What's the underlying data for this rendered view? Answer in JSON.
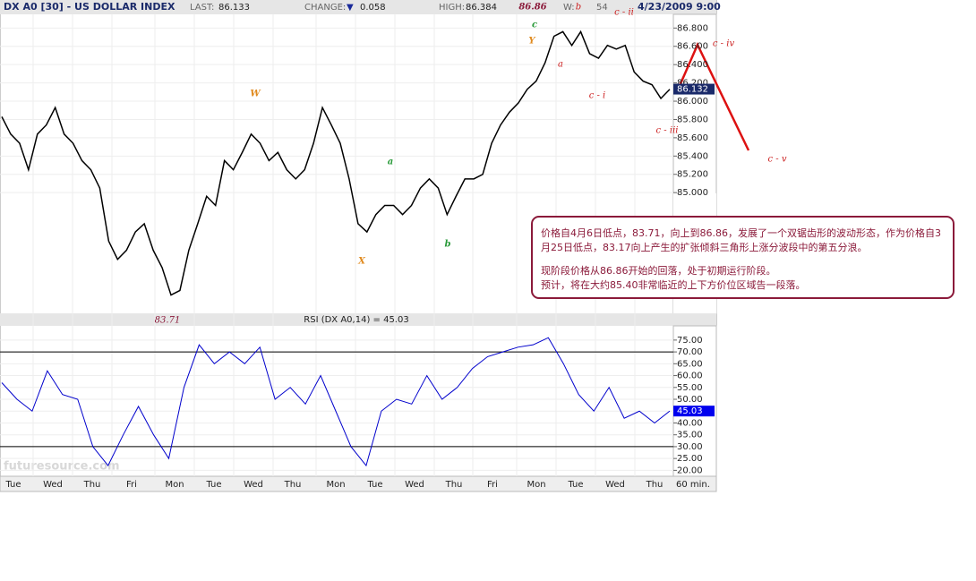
{
  "header": {
    "title": "DX A0 [30] - US DOLLAR INDEX",
    "last_label": "LAST:",
    "last": 86.133,
    "change_label": "CHANGE:",
    "change_arrow": "▼",
    "change": 0.058,
    "high_label": "HIGH:",
    "high": 86.384,
    "w_label": "W:",
    "w_value": 54,
    "date": "4/23/2009 9:00"
  },
  "chart_data": [
    {
      "type": "line",
      "name": "price",
      "color": "#000000",
      "values": [
        85.83,
        85.64,
        85.54,
        85.25,
        85.64,
        85.74,
        85.93,
        85.64,
        85.54,
        85.35,
        85.25,
        85.05,
        84.47,
        84.27,
        84.37,
        84.57,
        84.66,
        84.37,
        84.18,
        83.88,
        83.93,
        84.37,
        84.66,
        84.96,
        84.86,
        85.35,
        85.25,
        85.44,
        85.64,
        85.54,
        85.35,
        85.44,
        85.25,
        85.15,
        85.25,
        85.54,
        85.93,
        85.74,
        85.54,
        85.15,
        84.66,
        84.57,
        84.76,
        84.86,
        84.86,
        84.76,
        84.86,
        85.05,
        85.15,
        85.05,
        84.76,
        84.96,
        85.15,
        85.15,
        85.2,
        85.54,
        85.74,
        85.88,
        85.98,
        86.13,
        86.22,
        86.42,
        86.71,
        86.76,
        86.61,
        86.76,
        86.52,
        86.47,
        86.61,
        86.57,
        86.61,
        86.32,
        86.22,
        86.18,
        86.03,
        86.13
      ],
      "ylim": [
        83.68,
        86.95
      ],
      "yticks": [
        {
          "value": 85.0,
          "label": "85.000"
        },
        {
          "value": 85.2,
          "label": "85.200"
        },
        {
          "value": 85.4,
          "label": "85.400"
        },
        {
          "value": 85.6,
          "label": "85.600"
        },
        {
          "value": 85.8,
          "label": "85.800"
        },
        {
          "value": 86.0,
          "label": "86.000"
        },
        {
          "value": 86.2,
          "label": "86.200"
        },
        {
          "value": 86.4,
          "label": "86.400"
        },
        {
          "value": 86.6,
          "label": "86.600"
        },
        {
          "value": 86.8,
          "label": "86.800"
        }
      ],
      "price_tag": 86.132,
      "grid": true
    },
    {
      "type": "line",
      "name": "RSI",
      "title": "RSI (DX A0,14) = 45.03",
      "color": "#0000cc",
      "values": [
        57,
        50,
        45,
        62,
        52,
        50,
        30,
        22,
        35,
        47,
        35,
        25,
        55,
        73,
        65,
        70,
        65,
        72,
        50,
        55,
        48,
        60,
        45,
        30,
        22,
        45,
        50,
        48,
        60,
        50,
        55,
        63,
        68,
        70,
        72,
        73,
        76,
        65,
        52,
        45,
        55,
        42,
        45,
        40,
        45.03
      ],
      "ylim": [
        17.5,
        81
      ],
      "yticks": [
        {
          "value": 20,
          "label": "20.00"
        },
        {
          "value": 25,
          "label": "25.00"
        },
        {
          "value": 30,
          "label": "30.00"
        },
        {
          "value": 35,
          "label": "35.00"
        },
        {
          "value": 40,
          "label": "40.00"
        },
        {
          "value": 45,
          "label": "45.00"
        },
        {
          "value": 50,
          "label": "50.00"
        },
        {
          "value": 55,
          "label": "55.00"
        },
        {
          "value": 60,
          "label": "60.00"
        },
        {
          "value": 65,
          "label": "65.00"
        },
        {
          "value": 70,
          "label": "70.00"
        },
        {
          "value": 75,
          "label": "75.00"
        }
      ],
      "levels": [
        30,
        70
      ],
      "price_tag": 45.03,
      "grid": true
    }
  ],
  "x_labels": [
    "Tue",
    "Wed",
    "Thu",
    "Fri",
    "Mon",
    "Tue",
    "Wed",
    "Thu",
    "Mon",
    "Tue",
    "Wed",
    "Thu",
    "Fri",
    "Mon",
    "Tue",
    "Wed",
    "Thu"
  ],
  "interval": "60 min.",
  "annotations": [
    {
      "text": "86.86",
      "color": "#8b1a3a"
    },
    {
      "text": "W",
      "color": "#e08a1e"
    },
    {
      "text": "X",
      "color": "#e08a1e"
    },
    {
      "text": "Y",
      "color": "#e08a1e"
    },
    {
      "text": "a",
      "color": "#2a9a3a"
    },
    {
      "text": "b",
      "color": "#2a9a3a"
    },
    {
      "text": "c",
      "color": "#2a9a3a"
    },
    {
      "text": "a",
      "color": "#cc2222"
    },
    {
      "text": "b",
      "color": "#cc2222"
    },
    {
      "text": "c - i",
      "color": "#cc2222"
    },
    {
      "text": "c - ii",
      "color": "#cc2222"
    },
    {
      "text": "c - iii",
      "color": "#cc2222"
    },
    {
      "text": "c - iv",
      "color": "#cc2222"
    },
    {
      "text": "c - v",
      "color": "#cc2222"
    },
    {
      "text": "83.71",
      "color": "#8b1a3a"
    }
  ],
  "watermark": "futuresource.com",
  "note": {
    "lines": [
      "价格自4月6日低点，83.71，向上到86.86，发展了一个双锯齿形的波动形态，作为价格自3",
      "月25日低点，83.17向上产生的扩张倾斜三角形上涨分波段中的第五分浪。",
      "现阶段价格从86.86开始的回落，处于初期运行阶段。",
      "预计，将在大约85.40非常临近的上下方价位区域告一段落。"
    ]
  }
}
